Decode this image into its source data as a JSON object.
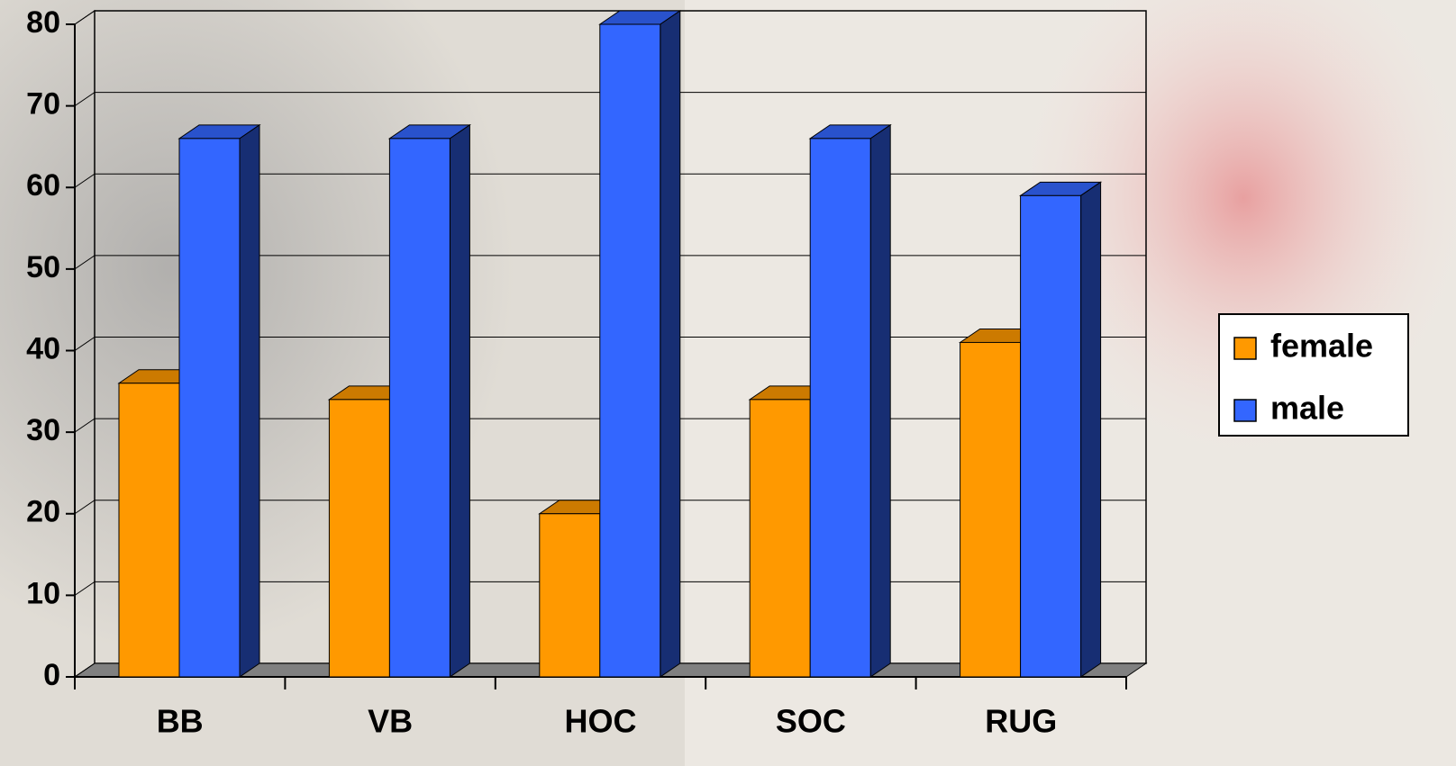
{
  "chart_data": {
    "type": "bar3d",
    "categories": [
      "BB",
      "VB",
      "HOC",
      "SOC",
      "RUG"
    ],
    "series": [
      {
        "name": "female",
        "color": "#FF9900",
        "values": [
          36,
          34,
          20,
          34,
          41
        ]
      },
      {
        "name": "male",
        "color": "#3366FF",
        "values": [
          66,
          66,
          80,
          66,
          59
        ]
      }
    ],
    "ylim": [
      0,
      80
    ],
    "yticks": [
      0,
      10,
      20,
      30,
      40,
      50,
      60,
      70,
      80
    ],
    "grid": true,
    "legend": "right"
  }
}
